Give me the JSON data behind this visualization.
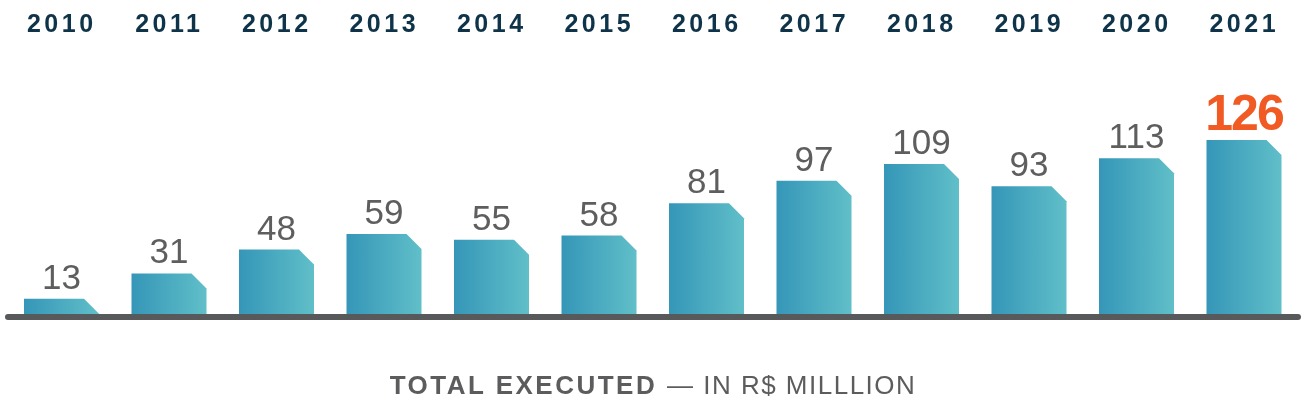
{
  "chart_data": {
    "type": "bar",
    "categories": [
      "2010",
      "2011",
      "2012",
      "2013",
      "2014",
      "2015",
      "2016",
      "2017",
      "2018",
      "2019",
      "2020",
      "2021"
    ],
    "values": [
      13,
      31,
      48,
      59,
      55,
      58,
      81,
      97,
      109,
      93,
      113,
      126
    ],
    "color": "#3596b8",
    "xlabel": "TOTAL EXECUTED — IN R$ MILLLION",
    "data_labels": true,
    "tick_labels": "x"
  }
}
